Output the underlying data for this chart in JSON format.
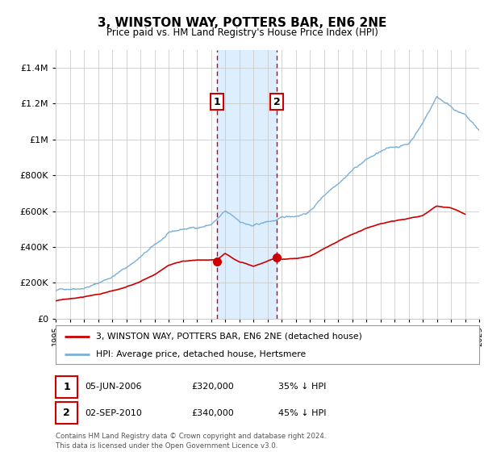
{
  "title": "3, WINSTON WAY, POTTERS BAR, EN6 2NE",
  "subtitle": "Price paid vs. HM Land Registry's House Price Index (HPI)",
  "ylim": [
    0,
    1500000
  ],
  "yticks": [
    0,
    200000,
    400000,
    600000,
    800000,
    1000000,
    1200000,
    1400000
  ],
  "x_start_year": 1995,
  "x_end_year": 2025,
  "sale1_date": 2006.43,
  "sale1_price": 320000,
  "sale1_label": "1",
  "sale2_date": 2010.67,
  "sale2_price": 340000,
  "sale2_label": "2",
  "red_line_color": "#cc0000",
  "blue_line_color": "#7ab0d8",
  "shade_color": "#ddeeff",
  "grid_color": "#cccccc",
  "legend1": "3, WINSTON WAY, POTTERS BAR, EN6 2NE (detached house)",
  "legend2": "HPI: Average price, detached house, Hertsmere",
  "table_row1_label": "1",
  "table_row1_date": "05-JUN-2006",
  "table_row1_price": "£320,000",
  "table_row1_hpi": "35% ↓ HPI",
  "table_row2_label": "2",
  "table_row2_date": "02-SEP-2010",
  "table_row2_price": "£340,000",
  "table_row2_hpi": "45% ↓ HPI",
  "footnote_line1": "Contains HM Land Registry data © Crown copyright and database right 2024.",
  "footnote_line2": "This data is licensed under the Open Government Licence v3.0.",
  "background_color": "#ffffff",
  "hpi_points_x": [
    1995,
    1996,
    1997,
    1998,
    1999,
    2000,
    2001,
    2002,
    2003,
    2004,
    2005,
    2006,
    2007,
    2008,
    2009,
    2010,
    2011,
    2012,
    2013,
    2014,
    2015,
    2016,
    2017,
    2018,
    2019,
    2020,
    2021,
    2022,
    2023,
    2024,
    2025
  ],
  "hpi_points_y": [
    155000,
    170000,
    185000,
    210000,
    250000,
    300000,
    360000,
    420000,
    480000,
    500000,
    510000,
    530000,
    595000,
    540000,
    510000,
    530000,
    545000,
    560000,
    590000,
    680000,
    760000,
    840000,
    900000,
    940000,
    960000,
    980000,
    1100000,
    1250000,
    1200000,
    1150000,
    1060000
  ],
  "red_points_x": [
    1995,
    1996,
    1997,
    1998,
    1999,
    2000,
    2001,
    2002,
    2003,
    2004,
    2005,
    2006.43,
    2007,
    2008,
    2009,
    2010.67,
    2011,
    2012,
    2013,
    2014,
    2015,
    2016,
    2017,
    2018,
    2019,
    2020,
    2021,
    2022,
    2023,
    2024
  ],
  "red_points_y": [
    100000,
    110000,
    120000,
    135000,
    152000,
    170000,
    200000,
    240000,
    290000,
    315000,
    320000,
    320000,
    355000,
    310000,
    290000,
    340000,
    330000,
    335000,
    350000,
    390000,
    430000,
    470000,
    500000,
    525000,
    540000,
    555000,
    570000,
    620000,
    610000,
    575000
  ]
}
